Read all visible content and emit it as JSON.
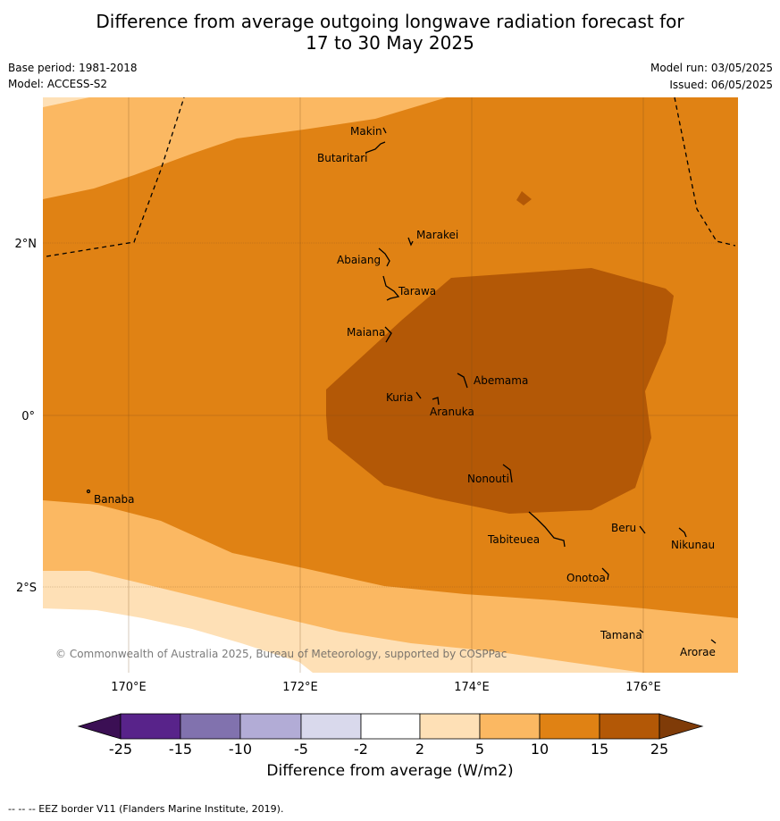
{
  "title_line1": "Difference from average outgoing longwave radiation forecast for",
  "title_line2": "17 to 30 May 2025",
  "base_period": "Base period: 1981-2018",
  "model": "Model: ACCESS-S2",
  "model_run": "Model run: 03/05/2025",
  "issued": "Issued: 06/05/2025",
  "copyright": "© Commonwealth of Australia 2025, Bureau of Meteorology, supported by COSPPac",
  "footnote": "--  --  -- EEZ border V11 (Flanders Marine Institute, 2019).",
  "lon_labels": [
    "170°E",
    "172°E",
    "174°E",
    "176°E"
  ],
  "lat_labels": [
    "2°N",
    "0°",
    "2°S"
  ],
  "places": [
    {
      "name": "Makin"
    },
    {
      "name": "Butaritari"
    },
    {
      "name": "Marakei"
    },
    {
      "name": "Abaiang"
    },
    {
      "name": "Tarawa"
    },
    {
      "name": "Maiana"
    },
    {
      "name": "Abemama"
    },
    {
      "name": "Kuria"
    },
    {
      "name": "Aranuka"
    },
    {
      "name": "Nonouti"
    },
    {
      "name": "Banaba"
    },
    {
      "name": "Beru"
    },
    {
      "name": "Tabiteuea"
    },
    {
      "name": "Nikunau"
    },
    {
      "name": "Onotoa"
    },
    {
      "name": "Tamana"
    },
    {
      "name": "Arorae"
    }
  ],
  "colorbar": {
    "title": "Difference from average (W/m2)",
    "ticks": [
      "-25",
      "-15",
      "-10",
      "-5",
      "-2",
      "2",
      "5",
      "10",
      "15",
      "25"
    ],
    "colors": [
      "#3b0f54",
      "#58238a",
      "#8172ae",
      "#b2acd6",
      "#d9d9ec",
      "#ffffff",
      "#fee0b6",
      "#fbb862",
      "#e08214",
      "#b35806",
      "#7f3b08"
    ]
  },
  "contour_colors": {
    "c2_5": "#fee0b6",
    "c5_10": "#fbb862",
    "c10_15": "#e08214",
    "c15_25": "#b35806"
  }
}
